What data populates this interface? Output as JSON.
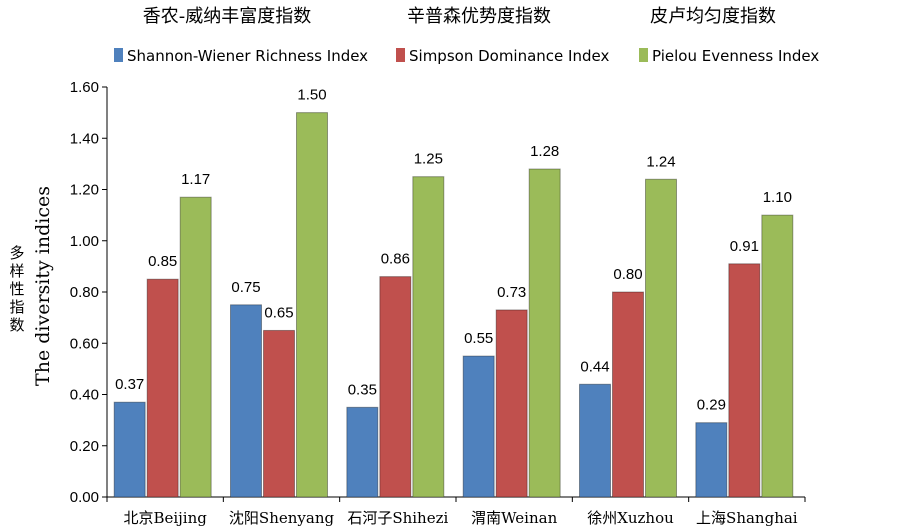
{
  "chart_data": {
    "type": "bar",
    "header_titles": [
      "香农-威纳丰富度指数",
      "辛普森优势度指数",
      "皮卢均匀度指数"
    ],
    "categories": [
      "北京Beijing",
      "沈阳Shenyang",
      "石河子Shihezi",
      "渭南Weinan",
      "徐州Xuzhou",
      "上海Shanghai"
    ],
    "series": [
      {
        "name": "Shannon-Wiener Richness Index",
        "color": "#4f81bd",
        "values": [
          0.37,
          0.75,
          0.35,
          0.55,
          0.44,
          0.29
        ]
      },
      {
        "name": "Simpson Dominance Index",
        "color": "#c0504d",
        "values": [
          0.85,
          0.65,
          0.86,
          0.73,
          0.8,
          0.91
        ]
      },
      {
        "name": "Pielou Evenness Index",
        "color": "#9bbb59",
        "values": [
          1.17,
          1.5,
          1.25,
          1.28,
          1.24,
          1.1
        ]
      }
    ],
    "ylabel_cn": [
      "多",
      "样",
      "性",
      "指",
      "数"
    ],
    "ylabel": "The diversity indices",
    "ylim": [
      0,
      1.6
    ],
    "yticks": [
      "0.00",
      "0.20",
      "0.40",
      "0.60",
      "0.80",
      "1.00",
      "1.20",
      "1.40",
      "1.60"
    ],
    "grid": false,
    "legend_position": "top"
  }
}
